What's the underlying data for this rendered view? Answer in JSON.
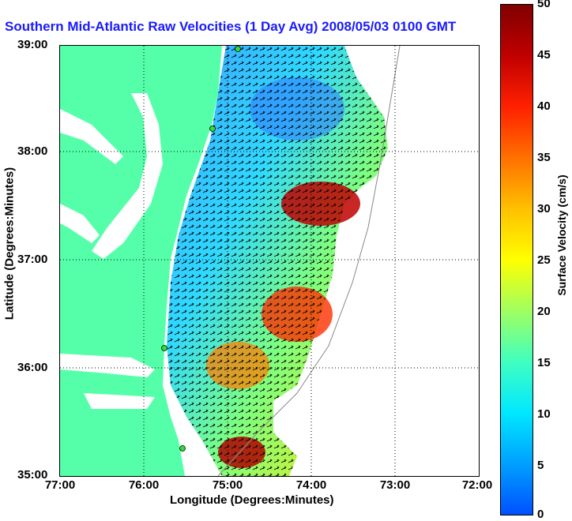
{
  "title": "Southern Mid-Atlantic Raw Velocities (1 Day Avg) 2008/05/03 0100 GMT",
  "axes": {
    "xlabel": "Longitude (Degrees:Minutes)",
    "ylabel": "Latitude (Degrees:Minutes)",
    "xticks": [
      "77:00",
      "76:00",
      "75:00",
      "74:00",
      "73:00",
      "72:00"
    ],
    "yticks": [
      "39:00",
      "38:00",
      "37:00",
      "36:00",
      "35:00"
    ]
  },
  "colorbar": {
    "label": "Surface Velocity (cm/s)",
    "ticks": [
      "50",
      "45",
      "40",
      "35",
      "30",
      "25",
      "20",
      "15",
      "10",
      "5",
      "0"
    ],
    "colors": [
      "#0050ff",
      "#00e8ff",
      "#a0ff60",
      "#ffff00",
      "#ff7000",
      "#c00000",
      "#800000"
    ]
  },
  "colors": {
    "land": "#55ffaa",
    "title": "#1a1aff",
    "station": "#33dd33"
  }
}
